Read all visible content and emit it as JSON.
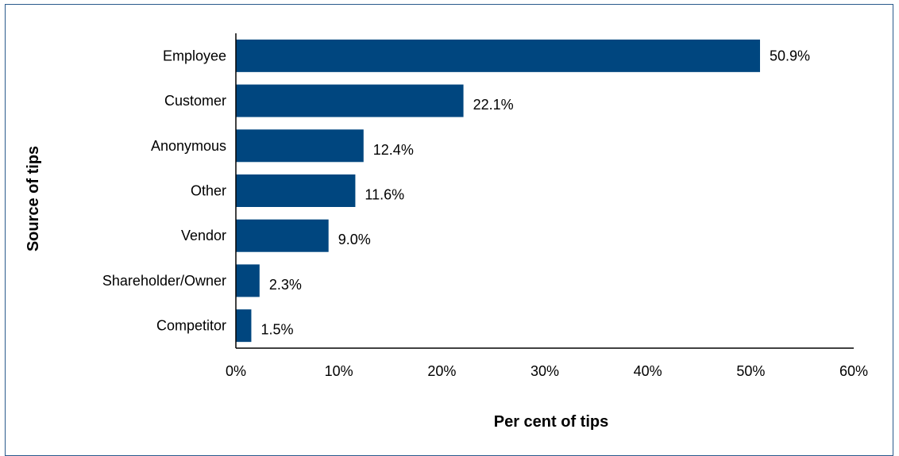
{
  "chart_data": {
    "type": "bar",
    "orientation": "horizontal",
    "categories": [
      "Employee",
      "Customer",
      "Anonymous",
      "Other",
      "Vendor",
      "Shareholder/Owner",
      "Competitor"
    ],
    "values": [
      50.9,
      22.1,
      12.4,
      11.6,
      9.0,
      2.3,
      1.5
    ],
    "value_labels": [
      "50.9%",
      "22.1%",
      "12.4%",
      "11.6%",
      "9.0%",
      "2.3%",
      "1.5%"
    ],
    "xlabel": "Per cent of tips",
    "ylabel": "Source of tips",
    "xlim": [
      0,
      60
    ],
    "x_ticks": [
      0,
      10,
      20,
      30,
      40,
      50,
      60
    ],
    "x_tick_labels": [
      "0%",
      "10%",
      "20%",
      "30%",
      "40%",
      "50%",
      "60%"
    ],
    "grid": false,
    "bar_color": "#00467f"
  }
}
